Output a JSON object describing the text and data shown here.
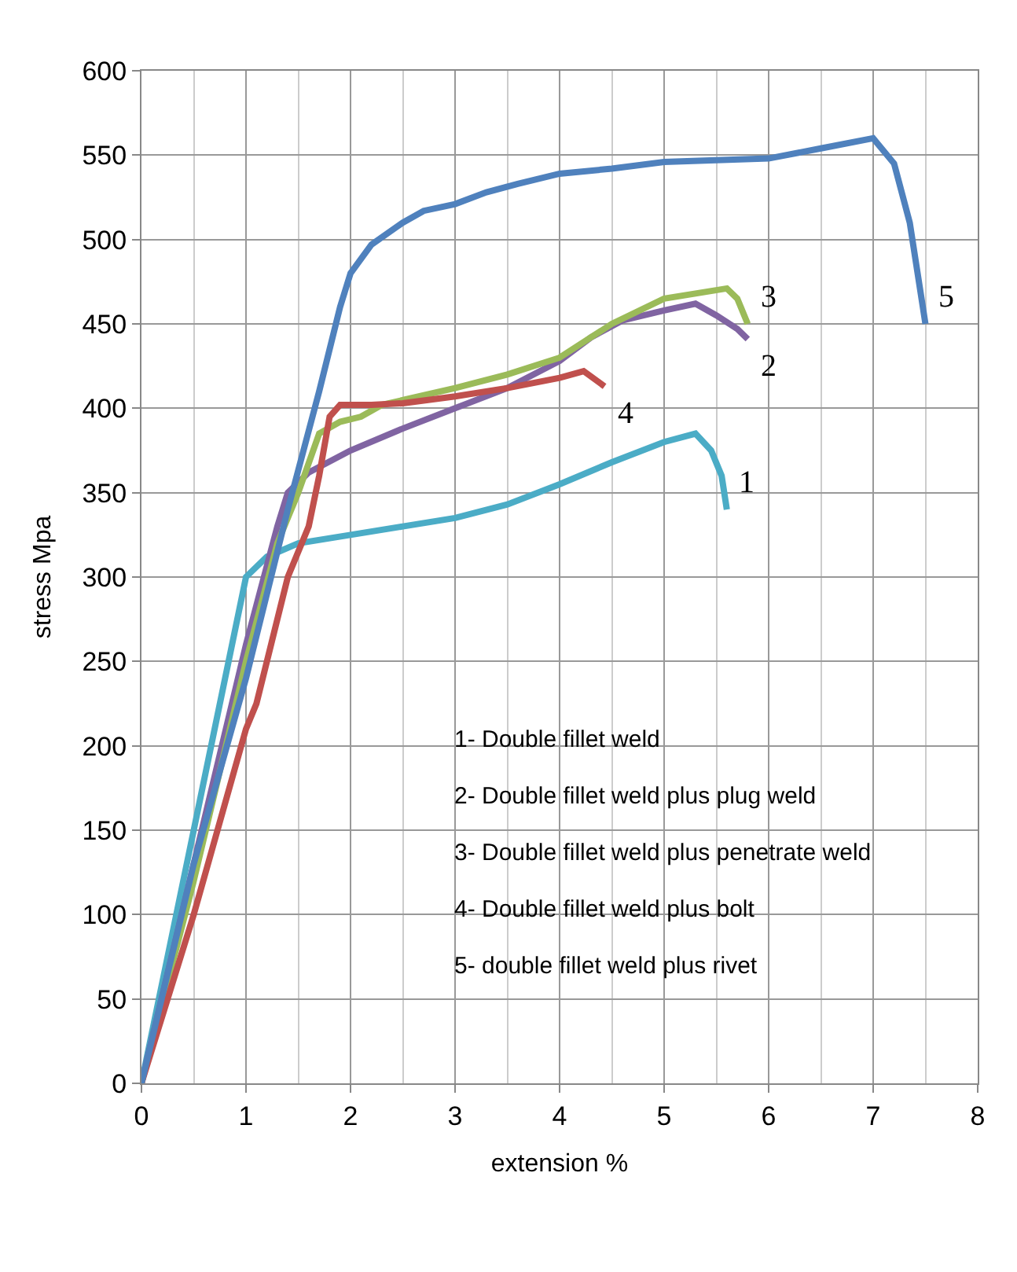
{
  "chart_data": {
    "type": "line",
    "xlabel": "extension %",
    "ylabel": "stress Mpa",
    "xlim": [
      0,
      8
    ],
    "xticks": [
      0,
      1,
      2,
      3,
      4,
      5,
      6,
      7,
      8
    ],
    "ylim": [
      0,
      600
    ],
    "yticks": [
      0,
      50,
      100,
      150,
      200,
      250,
      300,
      350,
      400,
      450,
      500,
      550,
      600
    ],
    "grid": true,
    "legend": false,
    "marker": "none",
    "line_style": "solid",
    "series": [
      {
        "name": "1",
        "color": "#4bacc6",
        "x": [
          0,
          0.5,
          1,
          1.2,
          1.5,
          2,
          2.5,
          3,
          3.5,
          4,
          4.5,
          5,
          5.3,
          5.45,
          5.55,
          5.6
        ],
        "values": [
          0,
          150,
          300,
          312,
          320,
          325,
          330,
          335,
          343,
          355,
          368,
          380,
          385,
          375,
          360,
          340
        ]
      },
      {
        "name": "2",
        "color": "#8064a2",
        "x": [
          0,
          0.5,
          1,
          1.3,
          1.4,
          1.6,
          2,
          2.5,
          3,
          3.5,
          4,
          4.3,
          4.6,
          5,
          5.3,
          5.5,
          5.7,
          5.8
        ],
        "values": [
          0,
          130,
          260,
          330,
          350,
          362,
          375,
          388,
          400,
          412,
          428,
          442,
          452,
          458,
          462,
          455,
          447,
          441
        ]
      },
      {
        "name": "3",
        "color": "#9bbb59",
        "x": [
          0,
          0.5,
          1,
          1.3,
          1.5,
          1.7,
          1.9,
          2.1,
          2.3,
          3,
          3.5,
          4,
          4.5,
          5,
          5.3,
          5.6,
          5.7,
          5.8
        ],
        "values": [
          0,
          120,
          250,
          320,
          350,
          385,
          392,
          395,
          402,
          412,
          420,
          430,
          450,
          465,
          468,
          471,
          465,
          450
        ]
      },
      {
        "name": "4",
        "color": "#c0504d",
        "x": [
          0,
          0.5,
          1,
          1.1,
          1.4,
          1.6,
          1.7,
          1.8,
          1.9,
          2.2,
          2.5,
          3,
          3.5,
          4,
          4.23,
          4.43
        ],
        "values": [
          0,
          100,
          210,
          225,
          300,
          330,
          360,
          395,
          402,
          402,
          403,
          407,
          412,
          418,
          422,
          413
        ]
      },
      {
        "name": "5",
        "color": "#4f81bd",
        "x": [
          0,
          0.5,
          1,
          1.4,
          1.7,
          1.9,
          2,
          2.2,
          2.5,
          2.7,
          3,
          3.3,
          3.6,
          4,
          4.5,
          5,
          5.5,
          6,
          6.5,
          7,
          7.2,
          7.35,
          7.5
        ],
        "values": [
          0,
          130,
          240,
          340,
          410,
          460,
          480,
          497,
          510,
          517,
          521,
          528,
          533,
          539,
          542,
          546,
          547,
          548,
          554,
          560,
          545,
          510,
          450
        ]
      }
    ],
    "annotations": [
      "1- Double fillet weld",
      "2- Double fillet weld plus plug weld",
      "3- Double fillet weld plus penetrate weld",
      "4- Double fillet weld plus bolt",
      "5- double fillet weld plus rivet"
    ]
  }
}
